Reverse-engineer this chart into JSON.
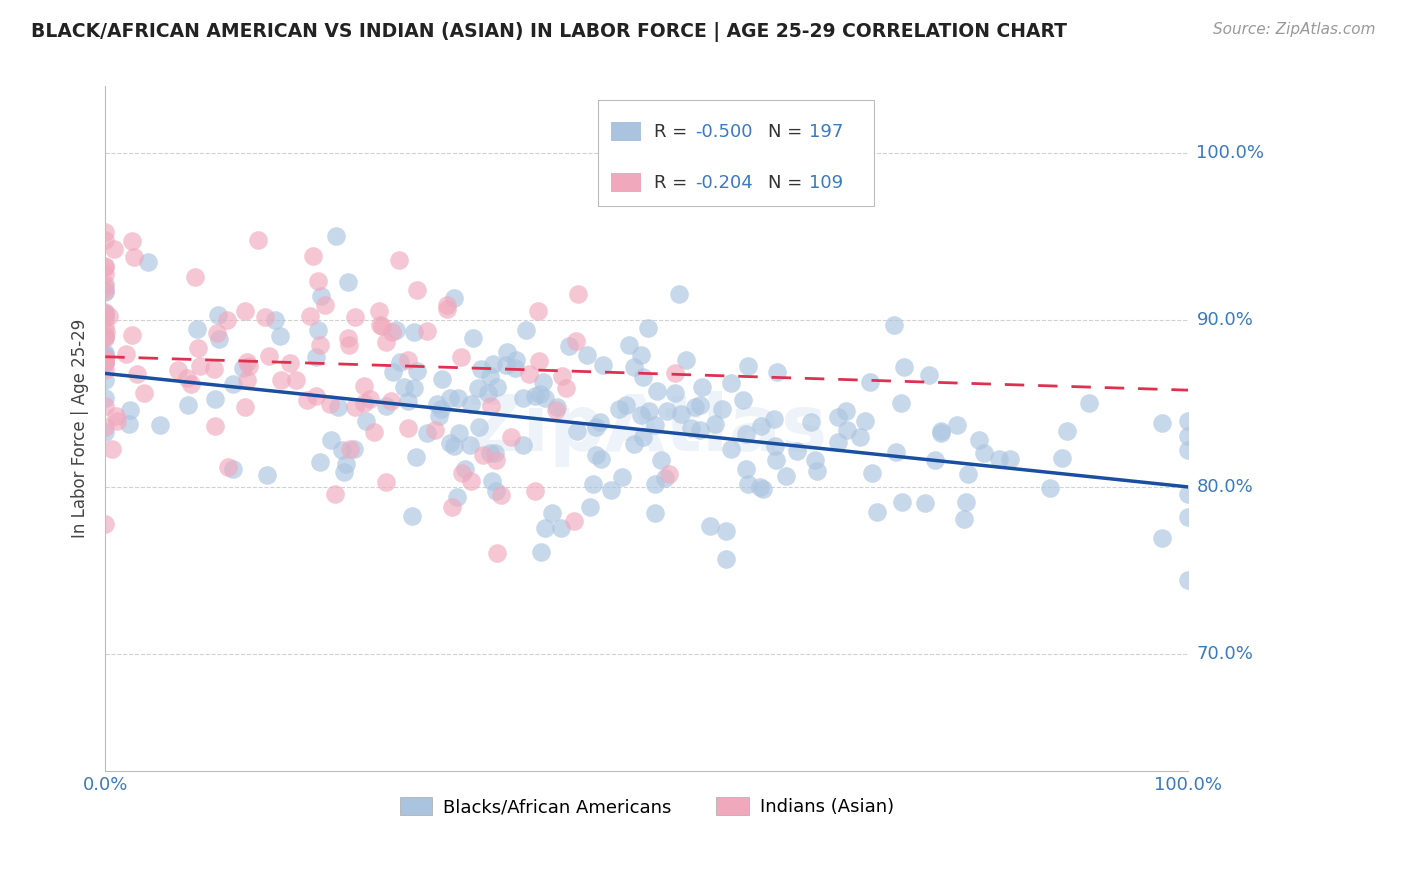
{
  "title": "BLACK/AFRICAN AMERICAN VS INDIAN (ASIAN) IN LABOR FORCE | AGE 25-29 CORRELATION CHART",
  "source": "Source: ZipAtlas.com",
  "ylabel": "In Labor Force | Age 25-29",
  "xlim": [
    0.0,
    1.0
  ],
  "ylim": [
    0.63,
    1.04
  ],
  "yticks": [
    0.7,
    0.8,
    0.9,
    1.0
  ],
  "ytick_labels": [
    "70.0%",
    "80.0%",
    "90.0%",
    "100.0%"
  ],
  "blue_color": "#aac4e0",
  "pink_color": "#f0a8bc",
  "blue_line_color": "#1a4fa0",
  "pink_line_color": "#e03050",
  "legend_blue_R": "R = -0.500",
  "legend_blue_N": "N = 197",
  "legend_pink_R": "R = -0.204",
  "legend_pink_N": "N = 109",
  "blue_R": -0.5,
  "blue_N": 197,
  "pink_R": -0.204,
  "pink_N": 109,
  "blue_intercept": 0.868,
  "blue_slope": -0.068,
  "pink_intercept": 0.878,
  "pink_slope": -0.02,
  "watermark": "ZipAtlas",
  "background_color": "#ffffff",
  "grid_color": "#cccccc",
  "title_color": "#222222",
  "tick_label_color": "#3a7abf",
  "ylabel_color": "#444444",
  "source_color": "#999999"
}
